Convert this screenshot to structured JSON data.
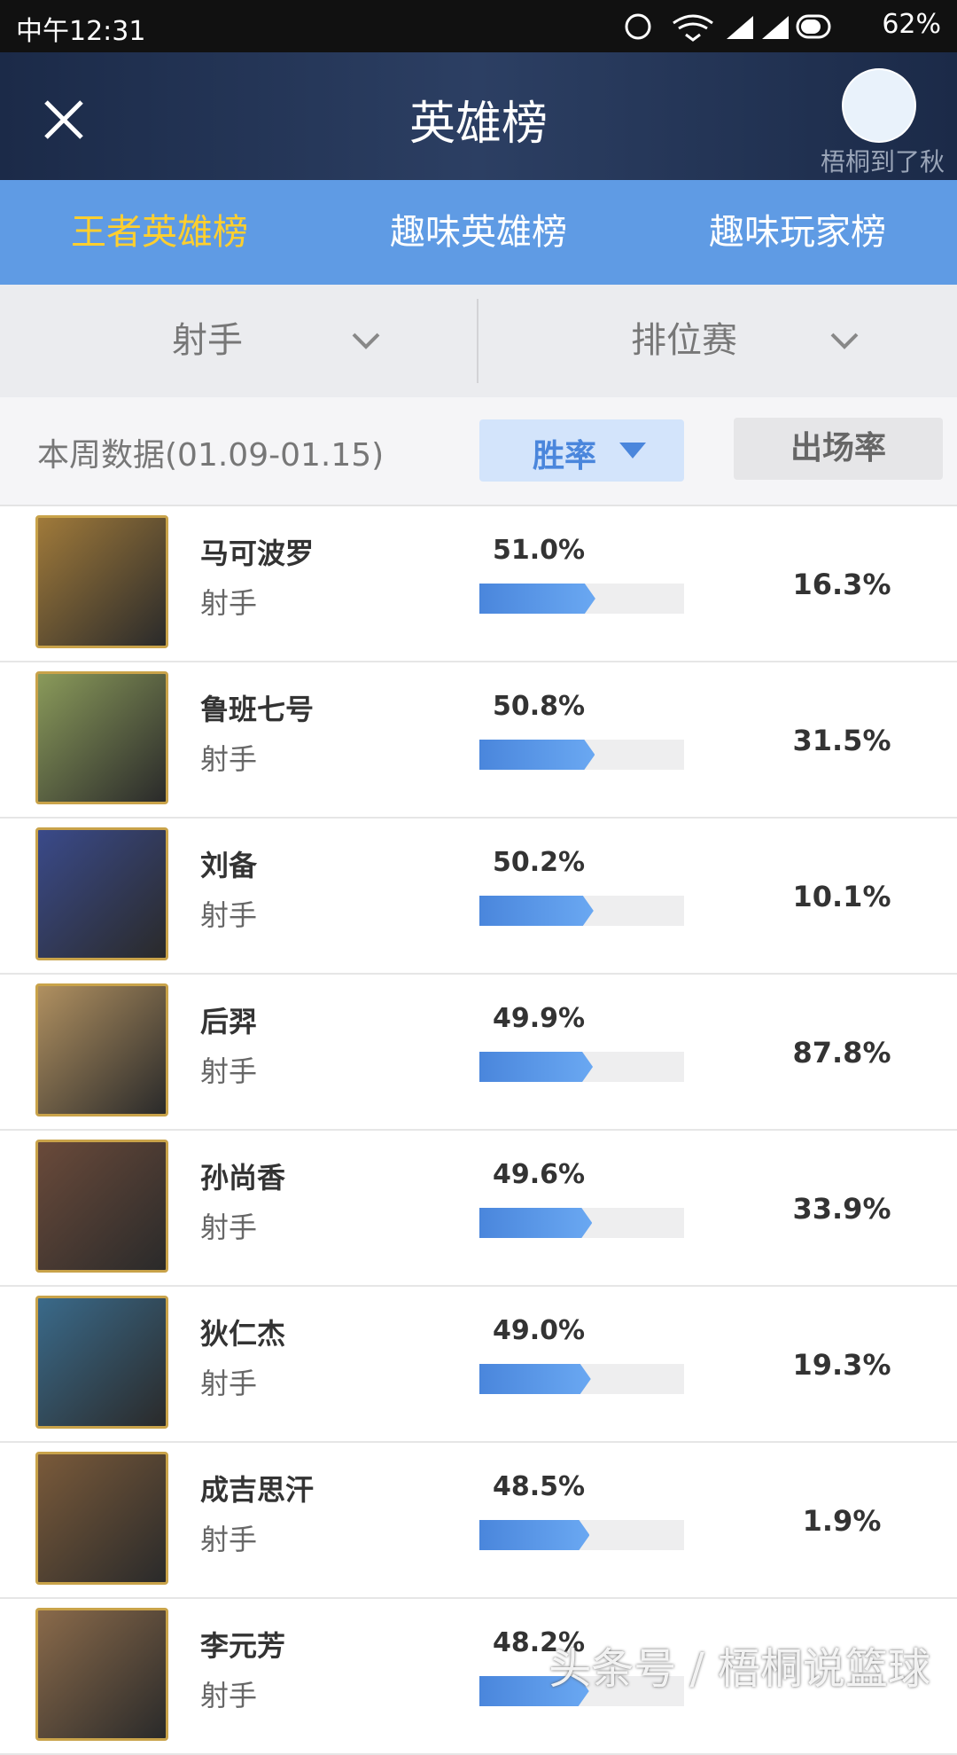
{
  "status": {
    "time": "中午12:31",
    "battery": "62%"
  },
  "header": {
    "title": "英雄榜",
    "username": "梧桐到了秋"
  },
  "tabs": [
    "王者英雄榜",
    "趣味英雄榜",
    "趣味玩家榜"
  ],
  "filters": [
    "射手",
    "排位赛"
  ],
  "period": "本周数据(01.09-01.15)",
  "sort": [
    "胜率",
    "出场率"
  ],
  "rows": [
    {
      "name": "马可波罗",
      "role": "射手",
      "win_rate": 51.0,
      "win_rate_label": "51.0%",
      "pick_rate": "16.3%"
    },
    {
      "name": "鲁班七号",
      "role": "射手",
      "win_rate": 50.8,
      "win_rate_label": "50.8%",
      "pick_rate": "31.5%"
    },
    {
      "name": "刘备",
      "role": "射手",
      "win_rate": 50.2,
      "win_rate_label": "50.2%",
      "pick_rate": "10.1%"
    },
    {
      "name": "后羿",
      "role": "射手",
      "win_rate": 49.9,
      "win_rate_label": "49.9%",
      "pick_rate": "87.8%"
    },
    {
      "name": "孙尚香",
      "role": "射手",
      "win_rate": 49.6,
      "win_rate_label": "49.6%",
      "pick_rate": "33.9%"
    },
    {
      "name": "狄仁杰",
      "role": "射手",
      "win_rate": 49.0,
      "win_rate_label": "49.0%",
      "pick_rate": "19.3%"
    },
    {
      "name": "成吉思汗",
      "role": "射手",
      "win_rate": 48.5,
      "win_rate_label": "48.5%",
      "pick_rate": "1.9%"
    },
    {
      "name": "李元芳",
      "role": "射手",
      "win_rate": 48.2,
      "win_rate_label": "48.2%"
    }
  ],
  "watermark": "头条号 / 梧桐说篮球"
}
